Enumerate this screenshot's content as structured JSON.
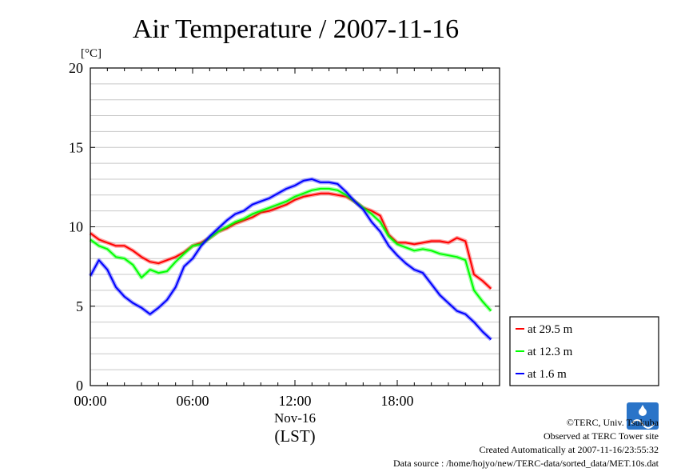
{
  "chart_data": {
    "type": "line",
    "title": "Air Temperature / 2007-11-16",
    "ylabel": "[°C]",
    "xlabel_date": "Nov-16",
    "xlabel_unit": "(LST)",
    "xlim": [
      0,
      24
    ],
    "ylim": [
      0,
      20
    ],
    "x_ticks": [
      0,
      6,
      12,
      18
    ],
    "x_tick_labels": [
      "00:00",
      "06:00",
      "12:00",
      "18:00"
    ],
    "y_ticks": [
      0,
      5,
      10,
      15,
      20
    ],
    "y_tick_labels": [
      "0",
      "5",
      "10",
      "15",
      "20"
    ],
    "grid": true,
    "legend_position": "right",
    "x": [
      0,
      0.5,
      1,
      1.5,
      2,
      2.5,
      3,
      3.5,
      4,
      4.5,
      5,
      5.5,
      6,
      6.5,
      7,
      7.5,
      8,
      8.5,
      9,
      9.5,
      10,
      10.5,
      11,
      11.5,
      12,
      12.5,
      13,
      13.5,
      14,
      14.5,
      15,
      15.5,
      16,
      16.5,
      17,
      17.5,
      18,
      18.5,
      19,
      19.5,
      20,
      20.5,
      21,
      21.5,
      22,
      22.5,
      23,
      23.5
    ],
    "series": [
      {
        "name": "at 29.5 m",
        "color": "#ff0000",
        "values": [
          9.6,
          9.2,
          9.0,
          8.8,
          8.8,
          8.5,
          8.1,
          7.8,
          7.7,
          7.9,
          8.1,
          8.4,
          8.8,
          9.0,
          9.3,
          9.7,
          9.9,
          10.2,
          10.4,
          10.6,
          10.9,
          11.0,
          11.2,
          11.4,
          11.7,
          11.9,
          12.0,
          12.1,
          12.1,
          12.0,
          11.9,
          11.6,
          11.2,
          11.0,
          10.7,
          9.5,
          9.0,
          9.0,
          8.9,
          9.0,
          9.1,
          9.1,
          9.0,
          9.3,
          9.1,
          7.0,
          6.6,
          6.1
        ]
      },
      {
        "name": "at 12.3 m",
        "color": "#00ff00",
        "values": [
          9.2,
          8.8,
          8.6,
          8.1,
          8.0,
          7.6,
          6.8,
          7.3,
          7.1,
          7.2,
          7.8,
          8.3,
          8.8,
          8.9,
          9.3,
          9.7,
          10.0,
          10.3,
          10.5,
          10.8,
          11.0,
          11.2,
          11.4,
          11.6,
          11.9,
          12.1,
          12.3,
          12.4,
          12.4,
          12.3,
          12.0,
          11.6,
          11.2,
          10.8,
          10.3,
          9.4,
          8.9,
          8.7,
          8.5,
          8.6,
          8.5,
          8.3,
          8.2,
          8.1,
          7.9,
          6.0,
          5.3,
          4.7
        ]
      },
      {
        "name": "at 1.6 m",
        "color": "#0000ff",
        "values": [
          6.9,
          7.9,
          7.3,
          6.2,
          5.6,
          5.2,
          4.9,
          4.5,
          4.9,
          5.4,
          6.2,
          7.5,
          8.0,
          8.8,
          9.4,
          9.9,
          10.4,
          10.8,
          11.0,
          11.4,
          11.6,
          11.8,
          12.1,
          12.4,
          12.6,
          12.9,
          13.0,
          12.8,
          12.8,
          12.7,
          12.2,
          11.6,
          11.1,
          10.3,
          9.7,
          8.8,
          8.2,
          7.7,
          7.3,
          7.1,
          6.4,
          5.7,
          5.2,
          4.7,
          4.5,
          4.0,
          3.4,
          2.9
        ]
      }
    ]
  },
  "footer": {
    "copyright": "©TERC, Univ. Tsukuba",
    "observed": "Observed at TERC Tower site",
    "created": "Created Automatically at 2007-11-16/23:55:32",
    "source": "Data source : /home/hojyo/new/TERC-data/sorted_data/MET.10s.dat"
  }
}
